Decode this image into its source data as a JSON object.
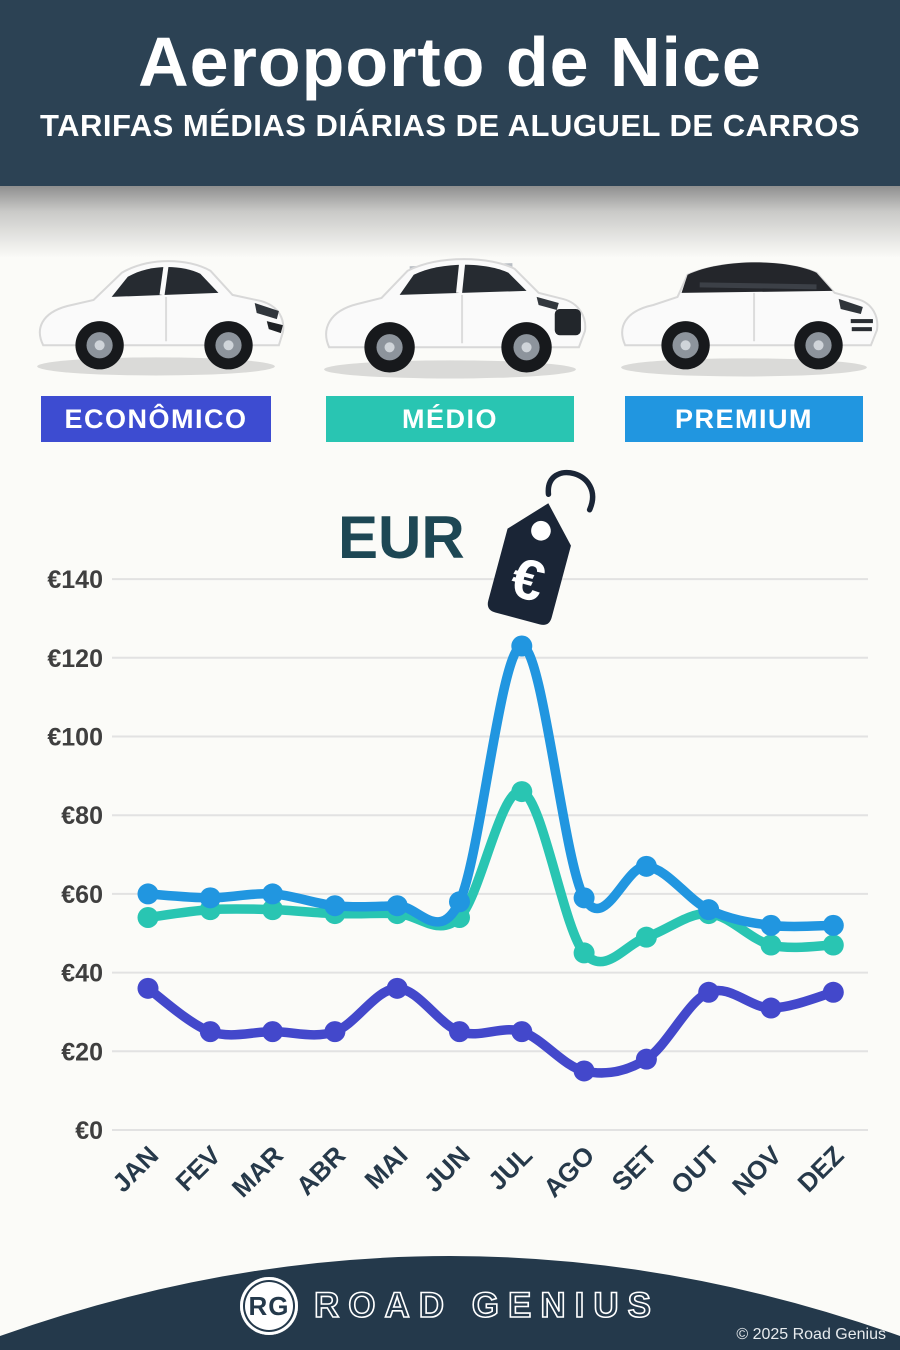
{
  "header": {
    "title": "Aeroporto de Nice",
    "subtitle": "TARIFAS MÉDIAS DIÁRIAS DE ALUGUEL DE CARROS"
  },
  "categories": [
    {
      "label": "ECONÔMICO",
      "color": "#3d4cd1"
    },
    {
      "label": "MÉDIO",
      "color": "#29c5b2"
    },
    {
      "label": "PREMIUM",
      "color": "#2196e0"
    }
  ],
  "currency": {
    "label": "EUR",
    "symbol": "€"
  },
  "chart_data": {
    "type": "line",
    "categories": [
      "JAN",
      "FEV",
      "MAR",
      "ABR",
      "MAI",
      "JUN",
      "JUL",
      "AGO",
      "SET",
      "OUT",
      "NOV",
      "DEZ"
    ],
    "series": [
      {
        "name": "Premium",
        "color": "#2196e0",
        "values": [
          60,
          59,
          60,
          57,
          57,
          58,
          123,
          59,
          67,
          56,
          52,
          52
        ]
      },
      {
        "name": "Médio",
        "color": "#29c5b2",
        "values": [
          54,
          56,
          56,
          55,
          55,
          54,
          86,
          45,
          49,
          55,
          47,
          47
        ]
      },
      {
        "name": "Econômico",
        "color": "#4348cb",
        "values": [
          36,
          25,
          25,
          25,
          36,
          25,
          25,
          15,
          18,
          35,
          31,
          35
        ]
      }
    ],
    "title": "",
    "xlabel": "",
    "ylabel_prefix": "€",
    "yticks": [
      "€0",
      "€20",
      "€40",
      "€60",
      "€80",
      "€100",
      "€120",
      "€140"
    ],
    "ylim": [
      0,
      140
    ],
    "ytick_step": 20,
    "grid": true,
    "legend_position": "none"
  },
  "colors": {
    "header_bg": "#2c4254",
    "footer_bg": "#24394b",
    "eur_text": "#1d4754",
    "tag": "#1a2536",
    "grid": "#e2e2e2",
    "axis_label": "#3f3f3f",
    "month_label": "#26394a",
    "page_bg": "#fbfbf8"
  },
  "footer": {
    "logo_initials": "RG",
    "brand": "ROAD GENIUS",
    "copyright": "© 2025 Road Genius"
  }
}
